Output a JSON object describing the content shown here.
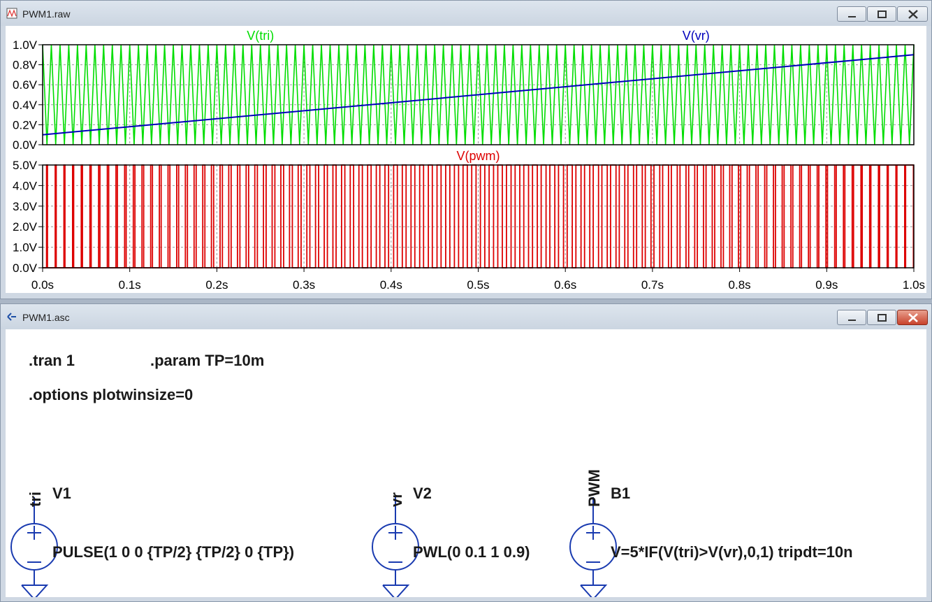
{
  "waveform_window": {
    "title": "PWM1.raw",
    "controls": {
      "minimize": "minimize",
      "maximize": "maximize",
      "close": "close"
    }
  },
  "schematic_window": {
    "title": "PWM1.asc",
    "directives": [
      ".tran 1",
      ".param TP=10m",
      ".options plotwinsize=0"
    ],
    "components": [
      {
        "name": "V1",
        "net": "tri",
        "value": "PULSE(1 0 0 {TP/2} {TP/2} 0 {TP})"
      },
      {
        "name": "V2",
        "net": "vr",
        "value": "PWL(0 0.1 1 0.9)"
      },
      {
        "name": "B1",
        "net": "PWM",
        "value": "V=5*IF(V(tri)>V(vr),0,1) tripdt=10n"
      }
    ]
  },
  "colors": {
    "tri": "#00dd00",
    "vr": "#0000bb",
    "pwm": "#dd0000",
    "close_button": "#c8432c"
  },
  "chart_data": [
    {
      "type": "line",
      "series": [
        {
          "name": "V(tri)",
          "description": "triangle wave 0..1 V, period 10 ms",
          "x": [
            0,
            0.005,
            0.01
          ],
          "values": [
            1.0,
            0.0,
            1.0
          ]
        },
        {
          "name": "V(vr)",
          "x": [
            0,
            1
          ],
          "values": [
            0.1,
            0.9
          ]
        }
      ],
      "xlim": [
        0,
        1
      ],
      "ylim": [
        0,
        1
      ],
      "yticks": [
        "1.0V",
        "0.8V",
        "0.6V",
        "0.4V",
        "0.2V",
        "0.0V"
      ],
      "grid": true
    },
    {
      "type": "line",
      "series": [
        {
          "name": "V(pwm)",
          "x": [
            0,
            1
          ],
          "values": [
            0,
            5
          ]
        }
      ],
      "xlim": [
        0,
        1
      ],
      "ylim": [
        0,
        5
      ],
      "yticks": [
        "5.0V",
        "4.0V",
        "3.0V",
        "2.0V",
        "1.0V",
        "0.0V"
      ],
      "xticks": [
        "0.0s",
        "0.1s",
        "0.2s",
        "0.3s",
        "0.4s",
        "0.5s",
        "0.6s",
        "0.7s",
        "0.8s",
        "0.9s",
        "1.0s"
      ],
      "grid": true
    }
  ]
}
